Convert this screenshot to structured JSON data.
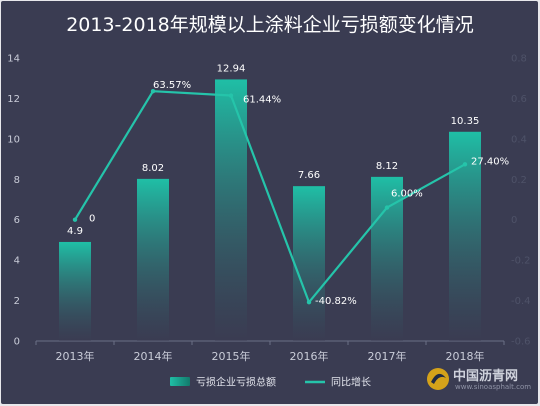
{
  "chart_data": {
    "type": "bar+line",
    "title": "2013-2018年规模以上涂料企业亏损额变化情况",
    "categories": [
      "2013年",
      "2014年",
      "2015年",
      "2016年",
      "2017年",
      "2018年"
    ],
    "series": [
      {
        "name": "亏损企业亏损总额",
        "type": "bar",
        "axis": "left",
        "values": [
          4.9,
          8.02,
          12.94,
          7.66,
          8.12,
          10.35
        ],
        "labels": [
          "4.9",
          "8.02",
          "12.94",
          "7.66",
          "8.12",
          "10.35"
        ]
      },
      {
        "name": "同比增长",
        "type": "line",
        "axis": "right",
        "values": [
          0,
          0.6357,
          0.6144,
          -0.4082,
          0.06,
          0.274
        ],
        "labels": [
          "0",
          "63.57%",
          "61.44%",
          "-40.82%",
          "6.00%",
          "27.40%"
        ]
      }
    ],
    "y_left": {
      "ylim": [
        0,
        14
      ],
      "ticks": [
        "0",
        "2",
        "4",
        "6",
        "8",
        "10",
        "12",
        "14"
      ]
    },
    "y_right": {
      "ylim": [
        -0.6,
        0.8
      ],
      "ticks": [
        "-0.6",
        "-0.4",
        "-0.2",
        "0",
        "0.2",
        "0.4",
        "0.6",
        "0.8"
      ]
    },
    "legend_position": "bottom",
    "colors": {
      "bar_top": "#1fbfa6",
      "bar_bottom": "#3a3c52",
      "line": "#25c4aa",
      "background": "#3a3c52"
    }
  },
  "watermark": {
    "text": "中国沥青网",
    "sub": "www.sinoasphalt.com"
  }
}
